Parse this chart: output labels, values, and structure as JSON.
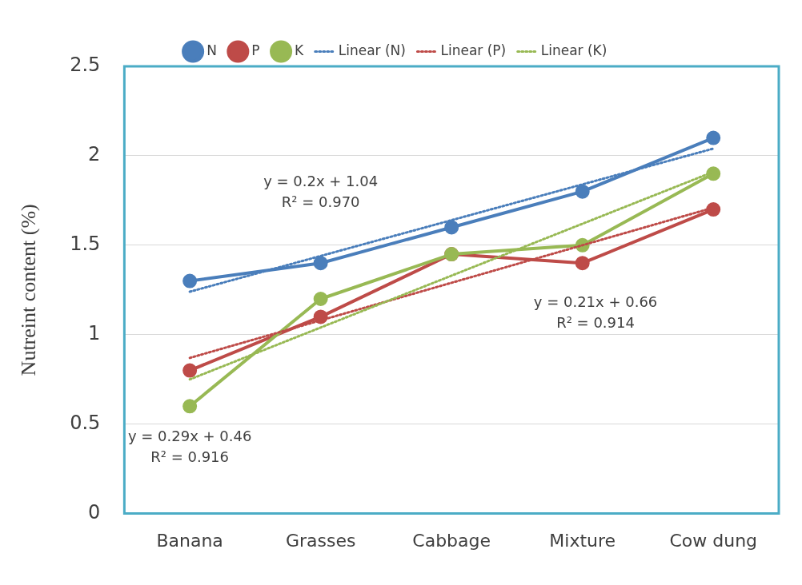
{
  "chart_data": {
    "type": "line",
    "ylabel": "Nutreint content (%)",
    "categories": [
      "Banana",
      "Grasses",
      "Cabbage",
      "Mixture",
      "Cow dung"
    ],
    "series": [
      {
        "name": "N",
        "color": "#4a7ebb",
        "values": [
          1.3,
          1.4,
          1.6,
          1.8,
          2.1
        ],
        "marker": "circle",
        "line_style": "solid"
      },
      {
        "name": "P",
        "color": "#be4b48",
        "values": [
          0.8,
          1.1,
          1.45,
          1.4,
          1.7
        ],
        "marker": "circle",
        "line_style": "solid"
      },
      {
        "name": "K",
        "color": "#98b954",
        "values": [
          0.6,
          1.2,
          1.45,
          1.5,
          1.9
        ],
        "marker": "circle",
        "line_style": "solid"
      },
      {
        "name": "Linear (N)",
        "color": "#4a7ebb",
        "x": [
          "Banana",
          "Grasses",
          "Cabbage",
          "Mixture",
          "Cow dung"
        ],
        "values": [
          1.24,
          1.44,
          1.64,
          1.84,
          2.04
        ],
        "marker": "none",
        "line_style": "dotted"
      },
      {
        "name": "Linear (P)",
        "color": "#be4b48",
        "x": [
          "Banana",
          "Grasses",
          "Cabbage",
          "Mixture",
          "Cow dung"
        ],
        "values": [
          0.87,
          1.08,
          1.29,
          1.5,
          1.71
        ],
        "marker": "none",
        "line_style": "dotted"
      },
      {
        "name": "Linear (K)",
        "color": "#98b954",
        "x": [
          "Banana",
          "Grasses",
          "Cabbage",
          "Mixture",
          "Cow dung"
        ],
        "values": [
          0.75,
          1.04,
          1.33,
          1.62,
          1.91
        ],
        "marker": "none",
        "line_style": "dotted"
      }
    ],
    "ylim": [
      0,
      2.5
    ],
    "yticks": [
      0,
      0.5,
      1,
      1.5,
      2,
      2.5
    ],
    "grid": "y",
    "legend": "top",
    "annotations": [
      "y = 0.2x + 1.04\nR² = 0.970",
      "y = 0.21x + 0.66\nR² = 0.914",
      "y = 0.29x + 0.46\nR² = 0.916"
    ]
  }
}
